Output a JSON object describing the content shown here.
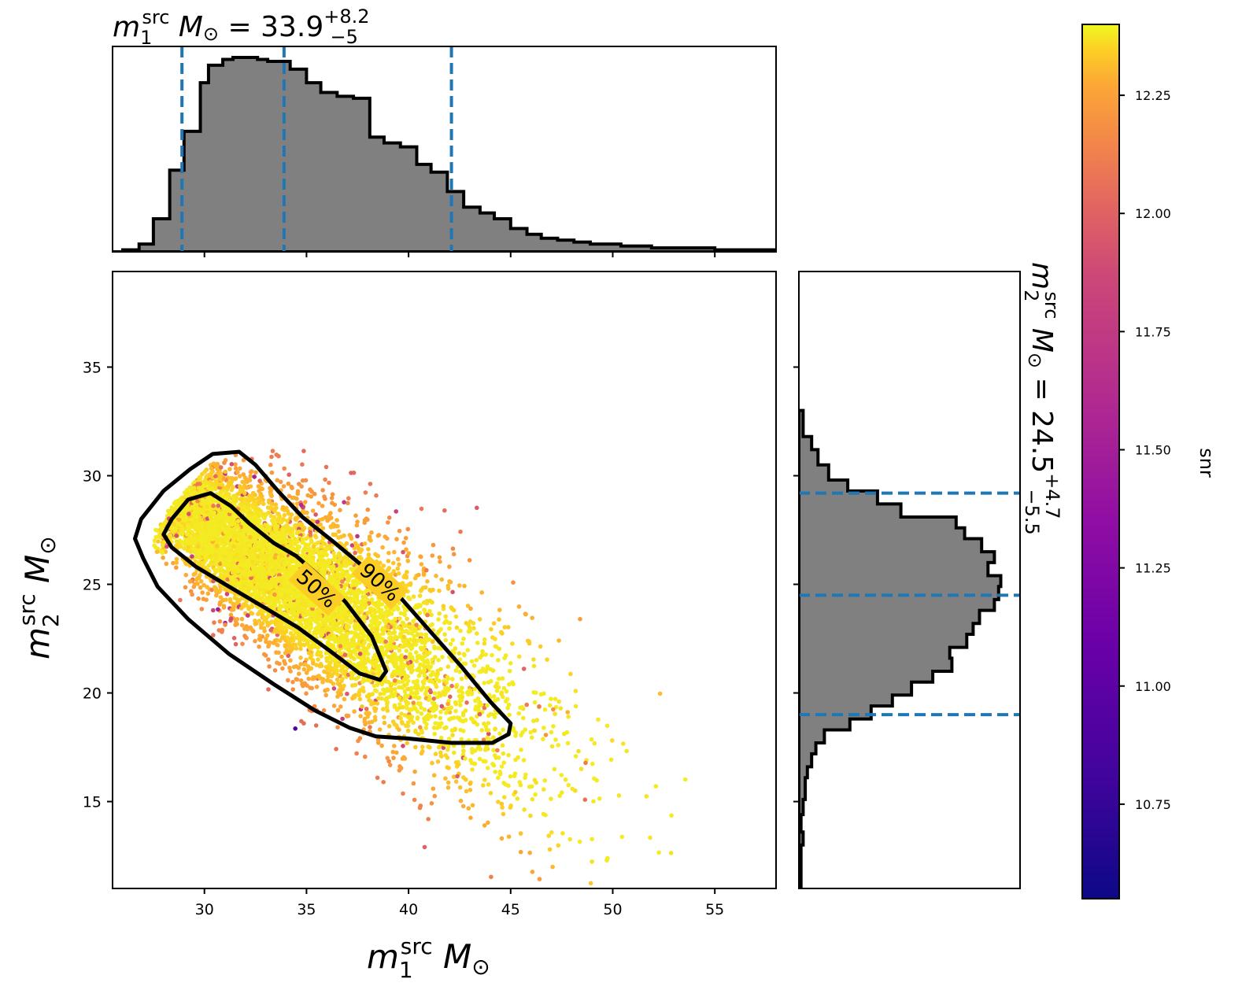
{
  "chart_data": [
    {
      "type": "histogram",
      "panel": "top-marginal",
      "variable": "m1_src",
      "title": {
        "base": "m",
        "sub": "1",
        "sup": "src",
        "unit": " M",
        "unit_sub": "⊙",
        "eq": " = 33.9",
        "plus": "+8.2",
        "minus": "−5"
      },
      "median": 33.9,
      "quantile_lines": [
        28.9,
        33.9,
        42.1
      ],
      "bin_edges": [
        26,
        26.8,
        27.5,
        28.3,
        29,
        29.8,
        30.2,
        30.9,
        31.4,
        32.6,
        33.1,
        34.2,
        35,
        35.7,
        36.5,
        37.3,
        38.1,
        38.8,
        39.6,
        40.4,
        41.1,
        41.9,
        42.7,
        43.5,
        44.2,
        45,
        45.8,
        46.5,
        47.3,
        48.1,
        48.9,
        50.4,
        51.9,
        55,
        58
      ],
      "counts": [
        0.01,
        0.04,
        0.17,
        0.42,
        0.62,
        0.87,
        0.96,
        0.99,
        1.0,
        0.99,
        0.98,
        0.94,
        0.87,
        0.82,
        0.8,
        0.79,
        0.59,
        0.56,
        0.54,
        0.45,
        0.41,
        0.31,
        0.23,
        0.2,
        0.17,
        0.12,
        0.09,
        0.07,
        0.06,
        0.05,
        0.04,
        0.03,
        0.02,
        0.01
      ],
      "xlim": [
        25.5,
        58
      ]
    },
    {
      "type": "scatter",
      "panel": "main",
      "xlabel": {
        "base": "m",
        "sub": "1",
        "sup": "src",
        "unit": " M",
        "unit_sub": "⊙"
      },
      "ylabel": {
        "base": "m",
        "sub": "2",
        "sup": "src",
        "unit": " M",
        "unit_sub": "⊙"
      },
      "xlim": [
        25.5,
        58
      ],
      "ylim": [
        11,
        39.4
      ],
      "xticks": [
        30,
        35,
        40,
        45,
        50,
        55
      ],
      "yticks": [
        15,
        20,
        25,
        30,
        35
      ],
      "color_variable": "snr",
      "colormap": "plasma",
      "contours": [
        {
          "label": "50%",
          "label_at": [
            35.5,
            24.8
          ],
          "label_rotation": 42,
          "x": [
            28.4,
            29.2,
            30.3,
            31.3,
            32.2,
            33.4,
            34.5,
            35.6,
            36.9,
            38.2,
            38.9,
            38.6,
            37.6,
            36.2,
            34.6,
            33.0,
            31.2,
            29.6,
            28.4,
            28.0,
            28.4
          ],
          "y": [
            28.0,
            28.9,
            29.2,
            28.6,
            27.8,
            26.9,
            26.3,
            25.4,
            24.2,
            22.6,
            21.0,
            20.6,
            20.9,
            21.9,
            23.0,
            23.9,
            24.9,
            25.8,
            26.7,
            27.3,
            28.0
          ]
        },
        {
          "label": "90%",
          "label_at": [
            38.6,
            25.1
          ],
          "label_rotation": 42,
          "x": [
            26.9,
            28.0,
            29.3,
            30.4,
            31.7,
            32.5,
            33.6,
            34.8,
            36.4,
            37.8,
            39.5,
            41.0,
            42.6,
            44.0,
            45.0,
            44.9,
            44.1,
            42.1,
            40.0,
            38.4,
            37.1,
            35.4,
            33.4,
            31.2,
            29.2,
            27.7,
            27.0,
            26.6,
            26.9
          ],
          "y": [
            28.0,
            29.3,
            30.3,
            31.0,
            31.1,
            30.5,
            29.3,
            28.1,
            26.9,
            25.8,
            24.5,
            22.9,
            21.2,
            19.6,
            18.6,
            18.1,
            17.7,
            17.7,
            17.9,
            18.0,
            18.4,
            19.2,
            20.4,
            21.8,
            23.4,
            24.9,
            26.2,
            27.1,
            28.0
          ]
        }
      ]
    },
    {
      "type": "histogram",
      "panel": "right-marginal",
      "orientation": "horizontal",
      "variable": "m2_src",
      "title": {
        "base": "m",
        "sub": "2",
        "sup": "src",
        "unit": " M",
        "unit_sub": "⊙",
        "eq": " = 24.5",
        "plus": "+4.7",
        "minus": "−5.5"
      },
      "median": 24.5,
      "quantile_lines": [
        19.0,
        24.5,
        29.2
      ],
      "bin_edges": [
        11,
        13,
        13.6,
        14.4,
        15.1,
        16.1,
        16.6,
        17.2,
        17.7,
        18.3,
        18.8,
        19.4,
        19.9,
        20.5,
        21.0,
        21.6,
        22.1,
        22.7,
        23.2,
        23.8,
        24.3,
        24.9,
        25.4,
        26.0,
        26.5,
        27.1,
        27.6,
        28.1,
        28.7,
        29.3,
        29.8,
        30.5,
        31.2,
        31.8,
        33
      ],
      "counts": [
        0.01,
        0.02,
        0.01,
        0.02,
        0.03,
        0.04,
        0.06,
        0.08,
        0.12,
        0.24,
        0.34,
        0.44,
        0.53,
        0.63,
        0.72,
        0.71,
        0.79,
        0.82,
        0.85,
        0.92,
        0.94,
        0.95,
        0.89,
        0.92,
        0.86,
        0.78,
        0.74,
        0.48,
        0.37,
        0.23,
        0.14,
        0.09,
        0.06,
        0.02
      ],
      "ylim": [
        11,
        39.4
      ]
    },
    {
      "type": "colorbar",
      "label": "snr",
      "colormap": "plasma",
      "range": [
        10.55,
        12.4
      ],
      "ticks": [
        "10.75",
        "11.00",
        "11.25",
        "11.50",
        "11.75",
        "12.00",
        "12.25"
      ]
    }
  ],
  "colors": {
    "hist_fill": "#808080",
    "hist_edge": "#000000",
    "quantile_line": "#1f77b4",
    "contour": "#000000"
  }
}
